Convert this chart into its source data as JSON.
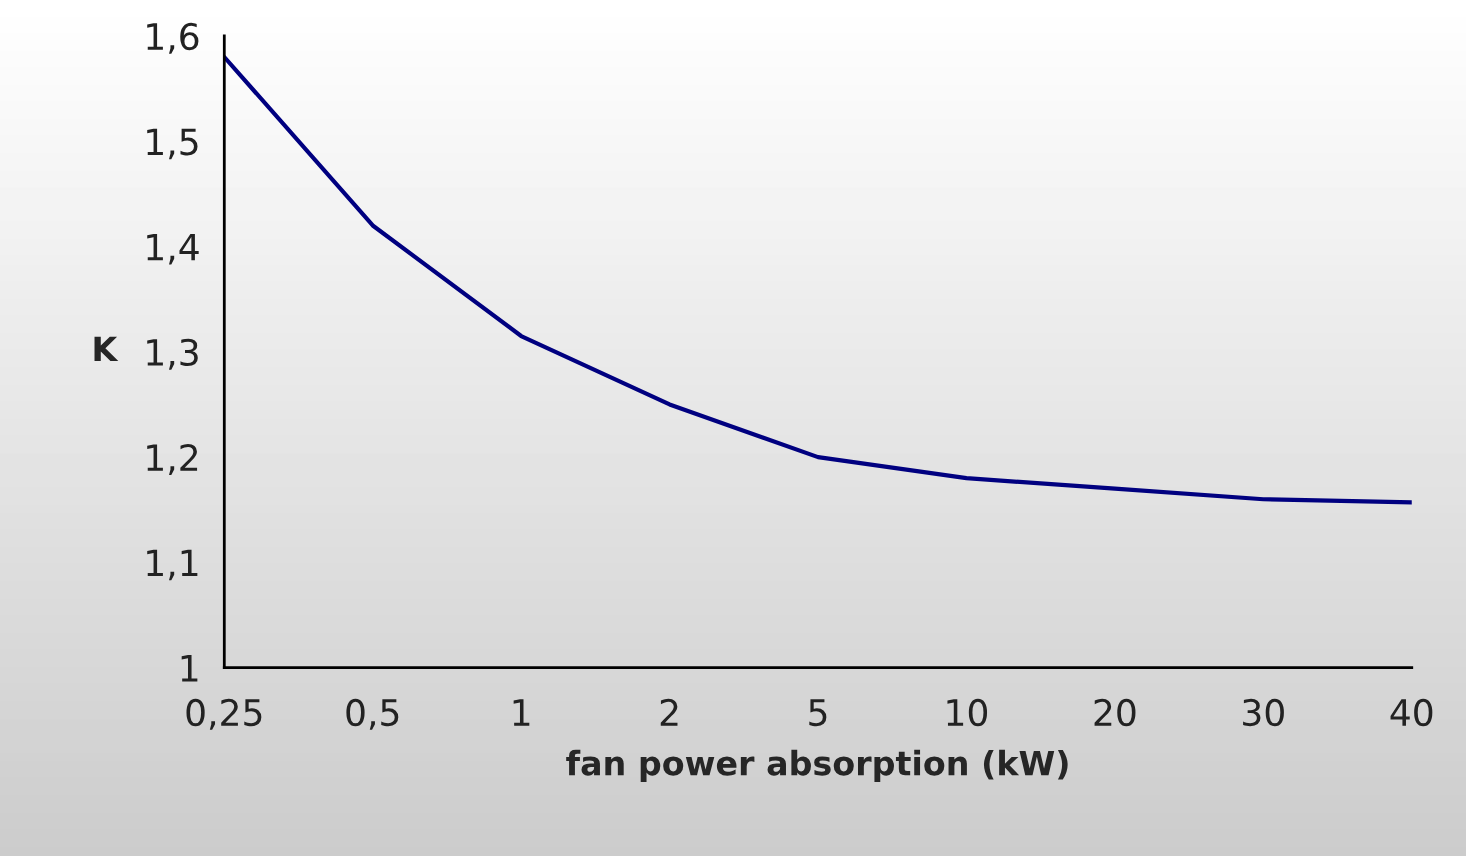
{
  "chart_data": {
    "type": "line",
    "xlabel": "fan power absorption (kW)",
    "ylabel": "K",
    "categories": [
      "0,25",
      "0,5",
      "1",
      "2",
      "5",
      "10",
      "20",
      "30",
      "40"
    ],
    "series": [
      {
        "color": "#000080",
        "values": [
          1.58,
          1.42,
          1.315,
          1.25,
          1.2,
          1.18,
          1.17,
          1.16,
          1.157
        ]
      }
    ],
    "ylim": [
      1,
      1.6
    ],
    "yticks": [
      1,
      {
        "value": 1.1,
        "label": "1,1"
      },
      {
        "value": 1.2,
        "label": "1,2"
      },
      {
        "value": 1.3,
        "label": "1,3"
      },
      {
        "value": 1.4,
        "label": "1,4"
      },
      {
        "value": 1.5,
        "label": "1,5"
      },
      {
        "value": 1.6,
        "label": "1,6"
      }
    ],
    "grid": false,
    "legend": false,
    "marker": "none",
    "line_style": "solid"
  }
}
